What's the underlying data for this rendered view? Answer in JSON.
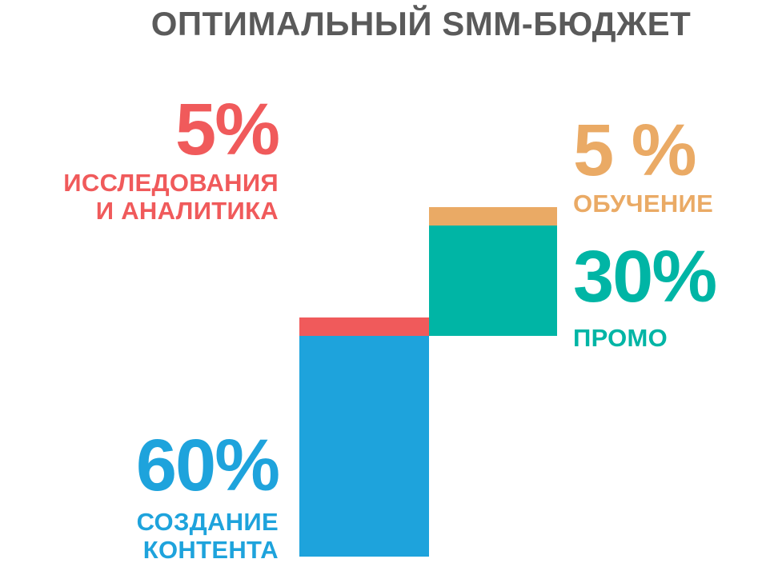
{
  "title": "ОПТИМАЛЬНЫЙ SMM-БЮДЖЕТ",
  "chart_data": {
    "type": "bar",
    "layout": "waterfall",
    "title": "ОПТИМАЛЬНЫЙ SMM-БЮДЖЕТ",
    "categories": [
      "СОЗДАНИЕ КОНТЕНТА",
      "ИССЛЕДОВАНИЯ И АНАЛИТИКА",
      "ПРОМО",
      "ОБУЧЕНИЕ"
    ],
    "values": [
      60,
      5,
      30,
      5
    ],
    "segments": [
      {
        "key": "content",
        "pct_label": "60%",
        "caption_lines": [
          "СОЗДАНИЕ",
          "КОНТЕНТА"
        ],
        "value": 60,
        "start": 0,
        "column": "left",
        "color": "#1ea3dc"
      },
      {
        "key": "research",
        "pct_label": "5%",
        "caption_lines": [
          "ИССЛЕДОВАНИЯ",
          "И АНАЛИТИКА"
        ],
        "value": 5,
        "start": 60,
        "column": "left",
        "color": "#f05a5b"
      },
      {
        "key": "promo",
        "pct_label": "30%",
        "caption_lines": [
          "ПРОМО"
        ],
        "value": 30,
        "start": 60,
        "column": "right",
        "color": "#00b5a5"
      },
      {
        "key": "education",
        "pct_label": "5 %",
        "caption_lines": [
          "ОБУЧЕНИЕ"
        ],
        "value": 5,
        "start": 90,
        "column": "right",
        "color": "#eaaa65"
      }
    ],
    "legend": "none",
    "grid": false
  }
}
